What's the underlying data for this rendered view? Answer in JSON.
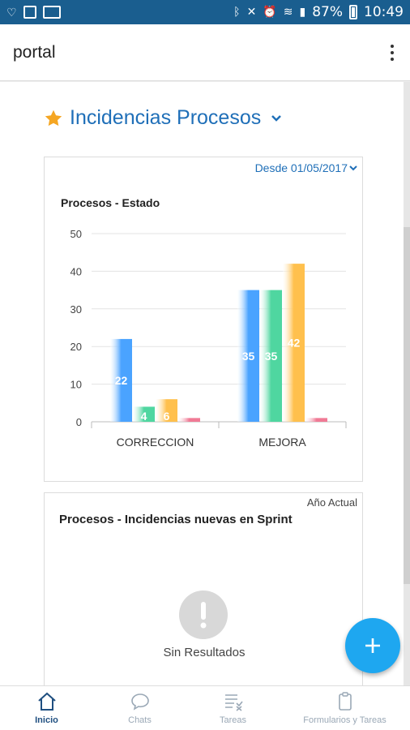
{
  "status_bar": {
    "battery_percent": "87%",
    "time": "10:49"
  },
  "app_bar": {
    "title": "portal"
  },
  "section": {
    "title": "Incidencias Procesos"
  },
  "card1": {
    "date_filter": "Desde 01/05/2017",
    "chart_title": "Procesos - Estado"
  },
  "chart_data": {
    "type": "bar",
    "title": "Procesos - Estado",
    "categories": [
      "CORRECCION",
      "MEJORA"
    ],
    "series": [
      {
        "values": [
          22,
          35
        ],
        "color": "#4aa3ff"
      },
      {
        "values": [
          4,
          35
        ],
        "color": "#4fd6a0"
      },
      {
        "values": [
          6,
          42
        ],
        "color": "#ffc04d"
      },
      {
        "values": [
          1,
          1
        ],
        "color": "#f07a95"
      }
    ],
    "value_labels": [
      [
        "22",
        "35"
      ],
      [
        "4",
        "35"
      ],
      [
        "6",
        "42"
      ],
      [
        "",
        ""
      ]
    ],
    "yticks": [
      "0",
      "10",
      "20",
      "30",
      "40",
      "50"
    ],
    "ylim": [
      0,
      50
    ],
    "grid": true
  },
  "card2": {
    "period_label": "Año Actual",
    "chart_title": "Procesos - Incidencias nuevas en Sprint",
    "empty_text": "Sin Resultados"
  },
  "bottom_nav": {
    "items": [
      {
        "label": "Inicio",
        "icon": "home-icon",
        "active": true
      },
      {
        "label": "Chats",
        "icon": "chat-icon",
        "active": false
      },
      {
        "label": "Tareas",
        "icon": "tasks-icon",
        "active": false
      },
      {
        "label": "Formularios y Tareas",
        "icon": "clipboard-icon",
        "active": false
      }
    ]
  },
  "colors": {
    "status_bar": "#1a5e8f",
    "accent": "#1f6fb8",
    "fab": "#1ea7f0",
    "star": "#f5a623"
  }
}
